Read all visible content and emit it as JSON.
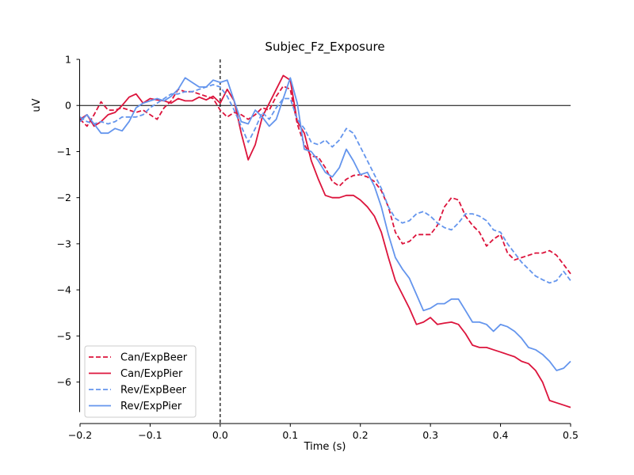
{
  "chart_data": {
    "type": "line",
    "title": "Subjec_Fz_Exposure",
    "xlabel": "Time (s)",
    "ylabel": "uV",
    "xlim": [
      -0.2,
      0.5
    ],
    "ylim": [
      -6.9,
      1.0
    ],
    "xticks": [
      -0.2,
      -0.1,
      0.0,
      0.1,
      0.2,
      0.3,
      0.4,
      0.5
    ],
    "xtick_labels": [
      "−0.2",
      "−0.1",
      "0.0",
      "0.1",
      "0.2",
      "0.3",
      "0.4",
      "0.5"
    ],
    "yticks": [
      1,
      0,
      -1,
      -2,
      -3,
      -4,
      -5,
      -6
    ],
    "ytick_labels": [
      "1",
      "0",
      "−1",
      "−2",
      "−3",
      "−4",
      "−5",
      "−6"
    ],
    "legend_position": "lower-left",
    "grid": false,
    "series": [
      {
        "name": "Can/ExpBeer",
        "color": "#dc143c",
        "dash": "dashed",
        "x": [
          -0.2,
          -0.19,
          -0.18,
          -0.17,
          -0.16,
          -0.15,
          -0.14,
          -0.13,
          -0.12,
          -0.11,
          -0.1,
          -0.09,
          -0.08,
          -0.07,
          -0.06,
          -0.05,
          -0.04,
          -0.03,
          -0.02,
          -0.01,
          0.0,
          0.01,
          0.02,
          0.03,
          0.04,
          0.05,
          0.06,
          0.07,
          0.08,
          0.09,
          0.1,
          0.11,
          0.12,
          0.13,
          0.14,
          0.15,
          0.16,
          0.17,
          0.18,
          0.19,
          0.2,
          0.21,
          0.22,
          0.23,
          0.24,
          0.25,
          0.26,
          0.27,
          0.28,
          0.29,
          0.3,
          0.31,
          0.32,
          0.33,
          0.34,
          0.35,
          0.36,
          0.37,
          0.38,
          0.39,
          0.4,
          0.41,
          0.42,
          0.43,
          0.44,
          0.45,
          0.46,
          0.47,
          0.48,
          0.49,
          0.5
        ],
        "values": [
          -0.3,
          -0.45,
          -0.2,
          0.08,
          -0.1,
          -0.1,
          -0.05,
          -0.1,
          -0.15,
          -0.1,
          -0.2,
          -0.3,
          -0.05,
          0.1,
          0.35,
          0.3,
          0.3,
          0.25,
          0.2,
          0.15,
          -0.1,
          -0.25,
          -0.15,
          -0.2,
          -0.3,
          -0.2,
          -0.05,
          -0.1,
          0.2,
          0.42,
          0.35,
          -0.4,
          -0.85,
          -1.1,
          -1.12,
          -1.35,
          -1.65,
          -1.75,
          -1.6,
          -1.52,
          -1.5,
          -1.55,
          -1.65,
          -1.85,
          -2.2,
          -2.75,
          -3.0,
          -2.95,
          -2.8,
          -2.8,
          -2.8,
          -2.6,
          -2.2,
          -2.0,
          -2.05,
          -2.4,
          -2.6,
          -2.75,
          -3.05,
          -2.9,
          -2.8,
          -3.2,
          -3.35,
          -3.3,
          -3.25,
          -3.2,
          -3.2,
          -3.15,
          -3.25,
          -3.45,
          -3.65
        ]
      },
      {
        "name": "Can/ExpPier",
        "color": "#dc143c",
        "dash": "solid",
        "x": [
          -0.2,
          -0.19,
          -0.18,
          -0.17,
          -0.16,
          -0.15,
          -0.14,
          -0.13,
          -0.12,
          -0.11,
          -0.1,
          -0.09,
          -0.08,
          -0.07,
          -0.06,
          -0.05,
          -0.04,
          -0.03,
          -0.02,
          -0.01,
          0.0,
          0.01,
          0.02,
          0.03,
          0.04,
          0.05,
          0.06,
          0.07,
          0.08,
          0.09,
          0.1,
          0.11,
          0.12,
          0.13,
          0.14,
          0.15,
          0.16,
          0.17,
          0.18,
          0.19,
          0.2,
          0.21,
          0.22,
          0.23,
          0.24,
          0.25,
          0.26,
          0.27,
          0.28,
          0.29,
          0.3,
          0.31,
          0.32,
          0.33,
          0.34,
          0.35,
          0.36,
          0.37,
          0.38,
          0.39,
          0.4,
          0.41,
          0.42,
          0.43,
          0.44,
          0.45,
          0.46,
          0.47,
          0.48,
          0.49,
          0.5
        ],
        "values": [
          -0.3,
          -0.2,
          -0.45,
          -0.35,
          -0.2,
          -0.15,
          0.0,
          0.18,
          0.25,
          0.05,
          0.15,
          0.12,
          0.1,
          0.05,
          0.15,
          0.1,
          0.1,
          0.18,
          0.12,
          0.2,
          0.05,
          0.35,
          0.1,
          -0.6,
          -1.18,
          -0.85,
          -0.25,
          0.05,
          0.35,
          0.65,
          0.55,
          -0.35,
          -0.6,
          -1.2,
          -1.6,
          -1.95,
          -2.0,
          -2.0,
          -1.95,
          -1.95,
          -2.05,
          -2.2,
          -2.4,
          -2.75,
          -3.3,
          -3.8,
          -4.1,
          -4.4,
          -4.75,
          -4.7,
          -4.6,
          -4.75,
          -4.72,
          -4.7,
          -4.75,
          -4.95,
          -5.2,
          -5.25,
          -5.25,
          -5.3,
          -5.35,
          -5.4,
          -5.45,
          -5.55,
          -5.6,
          -5.75,
          -6.0,
          -6.4,
          -6.45,
          -6.5,
          -6.55
        ]
      },
      {
        "name": "Rev/ExpBeer",
        "color": "#6495ed",
        "dash": "dashed",
        "x": [
          -0.2,
          -0.19,
          -0.18,
          -0.17,
          -0.16,
          -0.15,
          -0.14,
          -0.13,
          -0.12,
          -0.11,
          -0.1,
          -0.09,
          -0.08,
          -0.07,
          -0.06,
          -0.05,
          -0.04,
          -0.03,
          -0.02,
          -0.01,
          0.0,
          0.01,
          0.02,
          0.03,
          0.04,
          0.05,
          0.06,
          0.07,
          0.08,
          0.09,
          0.1,
          0.11,
          0.12,
          0.13,
          0.14,
          0.15,
          0.16,
          0.17,
          0.18,
          0.19,
          0.2,
          0.21,
          0.22,
          0.23,
          0.24,
          0.25,
          0.26,
          0.27,
          0.28,
          0.29,
          0.3,
          0.31,
          0.32,
          0.33,
          0.34,
          0.35,
          0.36,
          0.37,
          0.38,
          0.39,
          0.4,
          0.41,
          0.42,
          0.43,
          0.44,
          0.45,
          0.46,
          0.47,
          0.48,
          0.49,
          0.5
        ],
        "values": [
          -0.25,
          -0.35,
          -0.4,
          -0.35,
          -0.4,
          -0.35,
          -0.25,
          -0.25,
          -0.25,
          -0.2,
          -0.05,
          0.05,
          0.15,
          0.25,
          0.25,
          0.3,
          0.3,
          0.35,
          0.4,
          0.45,
          0.4,
          0.2,
          -0.1,
          -0.45,
          -0.8,
          -0.5,
          -0.15,
          -0.3,
          -0.05,
          0.15,
          0.15,
          -0.3,
          -0.5,
          -0.8,
          -0.85,
          -0.75,
          -0.9,
          -0.75,
          -0.5,
          -0.6,
          -0.9,
          -1.2,
          -1.5,
          -1.8,
          -2.2,
          -2.45,
          -2.55,
          -2.5,
          -2.35,
          -2.3,
          -2.4,
          -2.55,
          -2.65,
          -2.7,
          -2.55,
          -2.35,
          -2.35,
          -2.4,
          -2.5,
          -2.7,
          -2.75,
          -3.0,
          -3.2,
          -3.4,
          -3.55,
          -3.7,
          -3.78,
          -3.85,
          -3.8,
          -3.6,
          -3.8
        ]
      },
      {
        "name": "Rev/ExpPier",
        "color": "#6495ed",
        "dash": "solid",
        "x": [
          -0.2,
          -0.19,
          -0.18,
          -0.17,
          -0.16,
          -0.15,
          -0.14,
          -0.13,
          -0.12,
          -0.11,
          -0.1,
          -0.09,
          -0.08,
          -0.07,
          -0.06,
          -0.05,
          -0.04,
          -0.03,
          -0.02,
          -0.01,
          0.0,
          0.01,
          0.02,
          0.03,
          0.04,
          0.05,
          0.06,
          0.07,
          0.08,
          0.09,
          0.1,
          0.11,
          0.12,
          0.13,
          0.14,
          0.15,
          0.16,
          0.17,
          0.18,
          0.19,
          0.2,
          0.21,
          0.22,
          0.23,
          0.24,
          0.25,
          0.26,
          0.27,
          0.28,
          0.29,
          0.3,
          0.31,
          0.32,
          0.33,
          0.34,
          0.35,
          0.36,
          0.37,
          0.38,
          0.39,
          0.4,
          0.41,
          0.42,
          0.43,
          0.44,
          0.45,
          0.46,
          0.47,
          0.48,
          0.49,
          0.5
        ],
        "values": [
          -0.35,
          -0.2,
          -0.4,
          -0.6,
          -0.6,
          -0.5,
          -0.55,
          -0.35,
          -0.05,
          0.05,
          0.1,
          0.15,
          0.1,
          0.2,
          0.35,
          0.6,
          0.5,
          0.4,
          0.4,
          0.55,
          0.5,
          0.55,
          0.1,
          -0.35,
          -0.4,
          -0.1,
          -0.25,
          -0.45,
          -0.3,
          0.15,
          0.6,
          0.05,
          -0.95,
          -1.0,
          -1.2,
          -1.45,
          -1.55,
          -1.35,
          -0.95,
          -1.2,
          -1.5,
          -1.45,
          -1.75,
          -2.2,
          -2.8,
          -3.3,
          -3.55,
          -3.75,
          -4.1,
          -4.45,
          -4.4,
          -4.3,
          -4.3,
          -4.2,
          -4.2,
          -4.45,
          -4.7,
          -4.7,
          -4.75,
          -4.9,
          -4.75,
          -4.8,
          -4.9,
          -5.05,
          -5.25,
          -5.3,
          -5.4,
          -5.55,
          -5.75,
          -5.7,
          -5.55
        ]
      }
    ]
  }
}
